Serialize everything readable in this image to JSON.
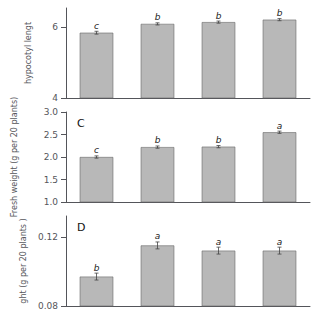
{
  "chart_data": [
    {
      "type": "bar",
      "categories": [
        null,
        null,
        null,
        null
      ],
      "values": [
        5.85,
        6.1,
        6.15,
        6.22
      ],
      "errors": [
        0.04,
        0.03,
        0.03,
        0.03
      ],
      "annotations": [
        "c",
        "b",
        "b",
        "b"
      ],
      "ylabel": "hypocotyl lengt",
      "ylim": [
        4.0,
        6.55
      ],
      "yticks": [
        4,
        6
      ],
      "color": "#b8b8b8",
      "grid": false,
      "tick_labels": "y"
    },
    {
      "type": "bar",
      "title": "C",
      "categories": [
        null,
        null,
        null,
        null
      ],
      "values": [
        2.0,
        2.22,
        2.23,
        2.55
      ],
      "errors": [
        0.025,
        0.025,
        0.025,
        0.025
      ],
      "annotations": [
        "c",
        "b",
        "b",
        "a"
      ],
      "ylabel": "Fresh weight (g per 20 plants)",
      "ylim": [
        1.0,
        3.0
      ],
      "yticks": [
        {
          "value": 1,
          "label": "1.0"
        },
        1.5,
        {
          "value": 2,
          "label": "2.0"
        },
        2.5,
        {
          "value": 3,
          "label": "3.0"
        }
      ],
      "color": "#b8b8b8",
      "grid": false,
      "tick_labels": "y"
    },
    {
      "type": "bar",
      "title": "D",
      "categories": [
        null,
        null,
        null,
        null
      ],
      "values": [
        0.097,
        0.115,
        0.112,
        0.112
      ],
      "errors": [
        0.002,
        0.002,
        0.002,
        0.002
      ],
      "annotations": [
        "b",
        "a",
        "a",
        "a"
      ],
      "ylabel": "ght (g per 20 plants )",
      "ylim": [
        0.08,
        0.132
      ],
      "yticks": [
        0.08,
        0.12
      ],
      "color": "#b8b8b8",
      "grid": false,
      "tick_labels": "y"
    }
  ]
}
